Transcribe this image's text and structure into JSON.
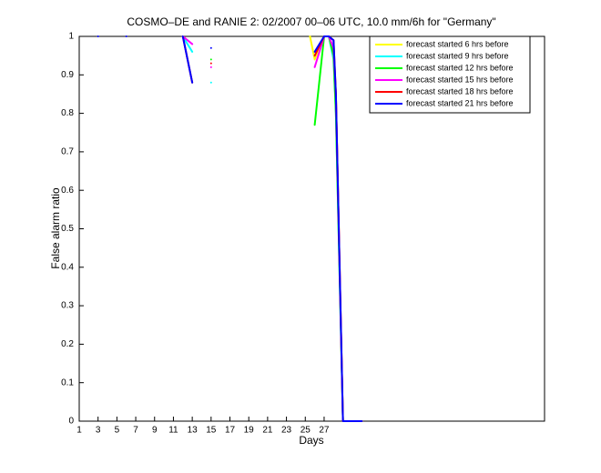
{
  "chart_data": {
    "type": "line",
    "title": "COSMO–DE and RANIE 2: 02/2007 00–06 UTC, 10.0 mm/6h for \"Germany\"",
    "x_label": "Days",
    "y_label": "False alarm ratio",
    "x": [
      3,
      4,
      6,
      7,
      12,
      13,
      14,
      15,
      16,
      25.5,
      26,
      27,
      27.5,
      28,
      28.25,
      29,
      30,
      31
    ],
    "series": [
      {
        "name": "forecast started 6 hrs before",
        "color": "#ffff00",
        "values": [
          null,
          null,
          null,
          null,
          null,
          null,
          null,
          null,
          null,
          1,
          0.94,
          1,
          1,
          0.95,
          0.85,
          0,
          0,
          0
        ]
      },
      {
        "name": "forecast started 9 hrs before",
        "color": "#00ffff",
        "values": [
          null,
          null,
          null,
          null,
          1,
          0.96,
          null,
          0.88,
          null,
          null,
          0.95,
          1,
          1,
          0.94,
          0.8,
          0,
          0,
          0
        ]
      },
      {
        "name": "forecast started 12 hrs before",
        "color": "#00ff00",
        "values": [
          null,
          null,
          null,
          null,
          null,
          null,
          null,
          0.94,
          null,
          null,
          0.77,
          1,
          1,
          0.95,
          0.8,
          0,
          0,
          0
        ]
      },
      {
        "name": "forecast started 15 hrs before",
        "color": "#ff00ff",
        "values": [
          null,
          null,
          null,
          null,
          1,
          0.98,
          null,
          0.92,
          null,
          null,
          0.92,
          1,
          1,
          0.97,
          0.85,
          0,
          0,
          0
        ]
      },
      {
        "name": "forecast started 18 hrs before",
        "color": "#ff0000",
        "values": [
          null,
          null,
          null,
          null,
          1,
          0.88,
          null,
          0.93,
          null,
          null,
          0.95,
          1,
          1,
          0.99,
          0.85,
          0,
          0,
          0
        ]
      },
      {
        "name": "forecast started 21 hrs before",
        "color": "#0000ff",
        "values": [
          1,
          null,
          1,
          null,
          1,
          0.88,
          null,
          0.97,
          null,
          null,
          0.96,
          1,
          1,
          0.99,
          0.85,
          0,
          0,
          0
        ]
      }
    ],
    "xlim": [
      1,
      50.4
    ],
    "ylim": [
      0,
      1
    ],
    "xticks": [
      1,
      3,
      5,
      7,
      9,
      11,
      13,
      15,
      17,
      19,
      21,
      23,
      25,
      27
    ],
    "yticks": [
      0,
      0.1,
      0.2,
      0.3,
      0.4,
      0.5,
      0.6,
      0.7,
      0.8,
      0.9,
      1
    ],
    "legend": "upper right"
  }
}
